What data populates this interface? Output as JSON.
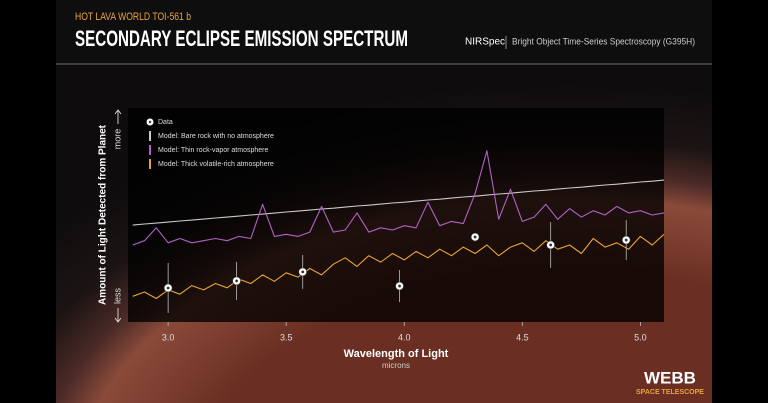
{
  "header": {
    "supertitle": "HOT LAVA WORLD TOI-561 b",
    "title": "SECONDARY ECLIPSE EMISSION SPECTRUM",
    "instrument": "NIRSpec",
    "mode": "Bright Object Time-Series Spectroscopy (G395H)"
  },
  "logo": {
    "name": "WEBB",
    "subtitle": "SPACE TELESCOPE"
  },
  "chart_data": {
    "type": "line",
    "xlabel": "Wavelength of Light",
    "xunit": "microns",
    "ylabel": "Amount of Light Detected from Planet",
    "ytop_label": "more",
    "ybottom_label": "less",
    "xlim": [
      2.83,
      5.1
    ],
    "xticks": [
      {
        "value": 3,
        "label": "3.0"
      },
      3.5,
      {
        "value": 4,
        "label": "4.0"
      },
      4.5,
      {
        "value": 5,
        "label": "5.0"
      }
    ],
    "ylim": [
      0,
      100
    ],
    "x": [
      2.85,
      2.9,
      2.95,
      3.0,
      3.05,
      3.1,
      3.15,
      3.2,
      3.25,
      3.3,
      3.35,
      3.4,
      3.45,
      3.5,
      3.55,
      3.6,
      3.65,
      3.7,
      3.75,
      3.8,
      3.85,
      3.9,
      3.95,
      4.0,
      4.05,
      4.1,
      4.15,
      4.2,
      4.25,
      4.3,
      4.35,
      4.4,
      4.45,
      4.5,
      4.55,
      4.6,
      4.65,
      4.7,
      4.75,
      4.8,
      4.85,
      4.9,
      4.95,
      5.0,
      5.05,
      5.1
    ],
    "series": [
      {
        "name": "Data",
        "type": "scatter",
        "color": "#ffffff",
        "x": [
          3.0,
          3.29,
          3.57,
          3.98,
          4.3,
          4.62,
          4.94
        ],
        "values": [
          15.9,
          19.2,
          23.4,
          16.8,
          39.7,
          36.0,
          38.3
        ],
        "errors": [
          11.7,
          8.9,
          7.9,
          7.5,
          1.4,
          10.7,
          9.3
        ]
      },
      {
        "name": "Model: Bare rock with no atmosphere",
        "type": "line",
        "color": "#c9c9c9",
        "values": [
          45.3,
          45.8,
          46.2,
          46.7,
          47.2,
          47.6,
          48.1,
          48.6,
          49.0,
          49.5,
          50.0,
          50.4,
          50.9,
          51.4,
          51.8,
          52.3,
          52.8,
          53.2,
          53.7,
          54.2,
          54.6,
          55.1,
          55.6,
          56.0,
          56.5,
          57.0,
          57.4,
          57.9,
          58.4,
          58.8,
          59.3,
          59.8,
          60.2,
          60.7,
          61.2,
          61.6,
          62.1,
          62.6,
          63.0,
          63.5,
          64.0,
          64.4,
          64.9,
          65.4,
          65.8,
          66.3
        ]
      },
      {
        "name": "Model: Thin rock-vapor atmosphere",
        "type": "line",
        "color": "#b062c4",
        "values": [
          36,
          38,
          44,
          37,
          39,
          37,
          38,
          39,
          38,
          40,
          39,
          55,
          40,
          41,
          40,
          42,
          54,
          42,
          43,
          51,
          42,
          44,
          43,
          45,
          44,
          56,
          45,
          47,
          46,
          60,
          80,
          48,
          62,
          47,
          49,
          55,
          48,
          53,
          49,
          52,
          50,
          54,
          51,
          52,
          50,
          51
        ]
      },
      {
        "name": "Model: Thick volatile-rich atmosphere",
        "type": "line",
        "color": "#e8a336",
        "values": [
          12,
          14,
          11,
          15,
          13,
          17,
          15,
          18,
          16,
          20,
          18,
          22,
          19,
          23,
          21,
          25,
          22,
          27,
          30,
          26,
          31,
          28,
          32,
          29,
          33,
          30,
          34,
          31,
          35,
          32,
          36,
          31,
          35,
          37,
          33,
          38,
          34,
          36,
          32,
          39,
          35,
          37,
          34,
          40,
          36,
          41
        ]
      }
    ]
  }
}
